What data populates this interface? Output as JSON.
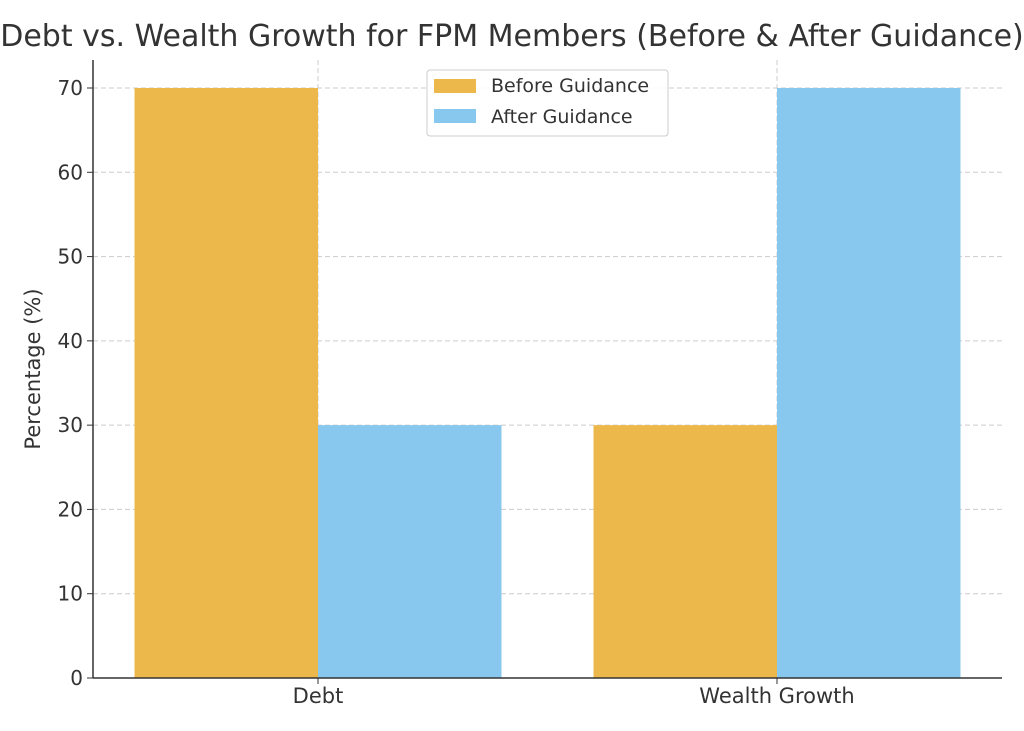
{
  "chart_data": {
    "type": "bar",
    "title": "Debt vs. Wealth Growth for FPM Members (Before & After Guidance)",
    "xlabel": "",
    "ylabel": "Percentage (%)",
    "categories": [
      "Debt",
      "Wealth Growth"
    ],
    "series": [
      {
        "name": "Before Guidance",
        "values": [
          70,
          30
        ],
        "color": "#ECB84B"
      },
      {
        "name": "After Guidance",
        "values": [
          30,
          70
        ],
        "color": "#88C8EE"
      }
    ],
    "ylim": [
      0,
      70
    ],
    "yticks": [
      0,
      10,
      20,
      30,
      40,
      50,
      60,
      70
    ],
    "grid": true,
    "legend_position": "top-center"
  }
}
